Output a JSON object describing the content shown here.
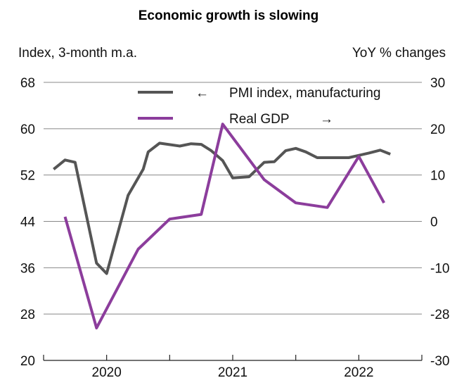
{
  "chart_data": {
    "type": "line",
    "title": "Economic growth is slowing",
    "left_axis_label": "Index, 3-month m.a.",
    "right_axis_label": "YoY % changes",
    "left_ticks": [
      "68",
      "60",
      "52",
      "44",
      "36",
      "28",
      "20"
    ],
    "right_ticks": [
      "30",
      "20",
      "10",
      "0",
      "-10",
      "-28",
      "-30"
    ],
    "x_tick_labels": [
      "2020",
      "2021",
      "2022"
    ],
    "left_ylim": [
      20,
      68
    ],
    "right_ylim": [
      -30,
      30
    ],
    "grid": true,
    "legend_placement": "top-right",
    "series": [
      {
        "name": "PMI index, manufacturing",
        "legend_arrow": "←",
        "axis": "left",
        "color": "#555555",
        "points": [
          [
            2019.58,
            53.0
          ],
          [
            2019.67,
            54.6
          ],
          [
            2019.75,
            54.2
          ],
          [
            2019.92,
            36.8
          ],
          [
            2020.0,
            35.0
          ],
          [
            2020.17,
            48.5
          ],
          [
            2020.29,
            53.0
          ],
          [
            2020.33,
            56.0
          ],
          [
            2020.42,
            57.5
          ],
          [
            2020.58,
            57.0
          ],
          [
            2020.67,
            57.4
          ],
          [
            2020.75,
            57.3
          ],
          [
            2020.83,
            56.2
          ],
          [
            2020.92,
            54.5
          ],
          [
            2021.0,
            51.5
          ],
          [
            2021.13,
            51.7
          ],
          [
            2021.25,
            54.2
          ],
          [
            2021.33,
            54.3
          ],
          [
            2021.42,
            56.2
          ],
          [
            2021.5,
            56.6
          ],
          [
            2021.58,
            56.0
          ],
          [
            2021.67,
            55.0
          ],
          [
            2021.83,
            55.0
          ],
          [
            2021.92,
            55.0
          ],
          [
            2022.08,
            55.8
          ],
          [
            2022.17,
            56.3
          ],
          [
            2022.25,
            55.6
          ]
        ]
      },
      {
        "name": "Real GDP",
        "legend_arrow": "→",
        "axis": "right",
        "color": "#8c3d9c",
        "points": [
          [
            2019.67,
            1.0
          ],
          [
            2019.92,
            -23.0
          ],
          [
            2020.25,
            -6.0
          ],
          [
            2020.5,
            0.5
          ],
          [
            2020.75,
            1.5
          ],
          [
            2020.92,
            21.0
          ],
          [
            2021.25,
            9.0
          ],
          [
            2021.5,
            4.0
          ],
          [
            2021.75,
            3.0
          ],
          [
            2022.0,
            14.0
          ],
          [
            2022.2,
            4.0
          ]
        ]
      }
    ]
  }
}
